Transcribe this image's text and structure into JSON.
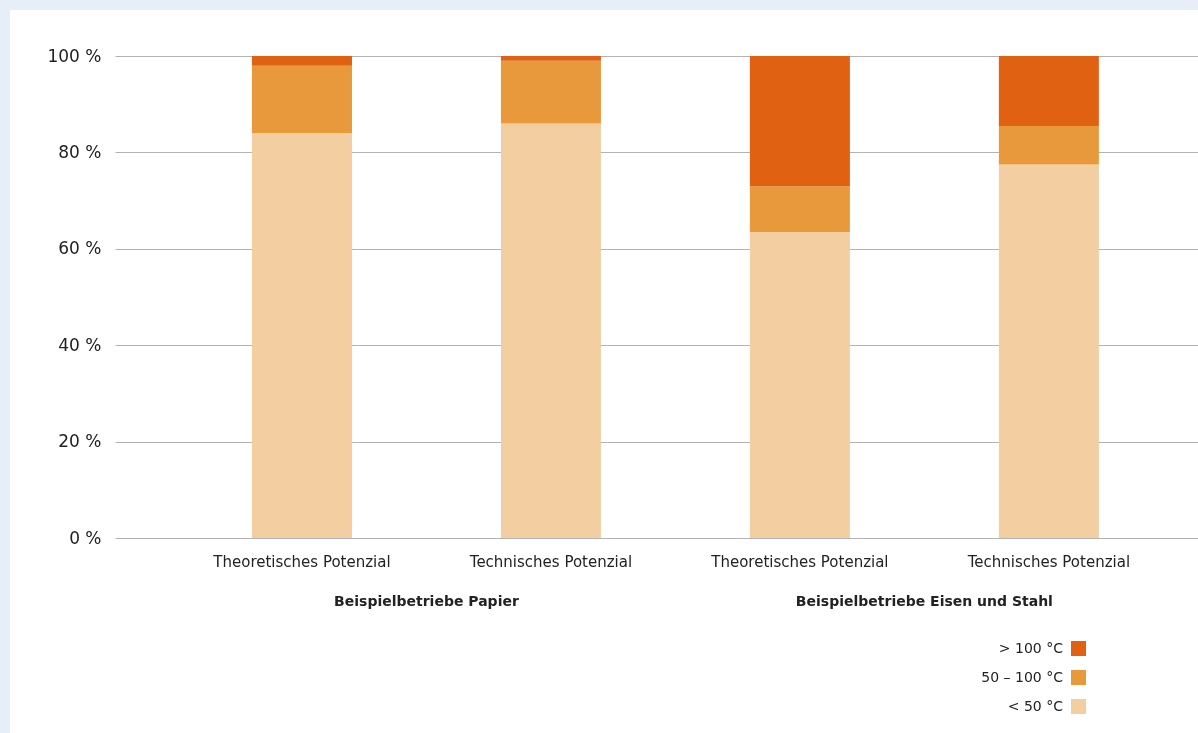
{
  "chart_data": {
    "type": "bar",
    "stacked": true,
    "categories": [
      "Theoretisches Potenzial",
      "Technisches Potenzial",
      "Theoretisches Potenzial",
      "Technisches Potenzial"
    ],
    "series": [
      {
        "name": "< 50 °C",
        "color": "#f3cea0",
        "values": [
          84,
          86,
          63.5,
          77.5
        ]
      },
      {
        "name": "50 – 100 °C",
        "color": "#e7993c",
        "values": [
          14,
          13,
          9.5,
          8
        ]
      },
      {
        "name": "> 100 °C",
        "color": "#e06112",
        "values": [
          2,
          1,
          27,
          14.5
        ]
      }
    ],
    "ylim": [
      0,
      100
    ],
    "yticks": [
      {
        "value": 0,
        "label": "0 %"
      },
      {
        "value": 20,
        "label": "20 %"
      },
      {
        "value": 40,
        "label": "40 %"
      },
      {
        "value": 60,
        "label": "60 %"
      },
      {
        "value": 80,
        "label": "80 %"
      },
      {
        "value": 100,
        "label": "100 %"
      }
    ],
    "grid": "y",
    "legend": "bottom right",
    "annotations": [
      "Beispielbetriebe Papier",
      "Beispielbetriebe Eisen und Stahl"
    ]
  }
}
